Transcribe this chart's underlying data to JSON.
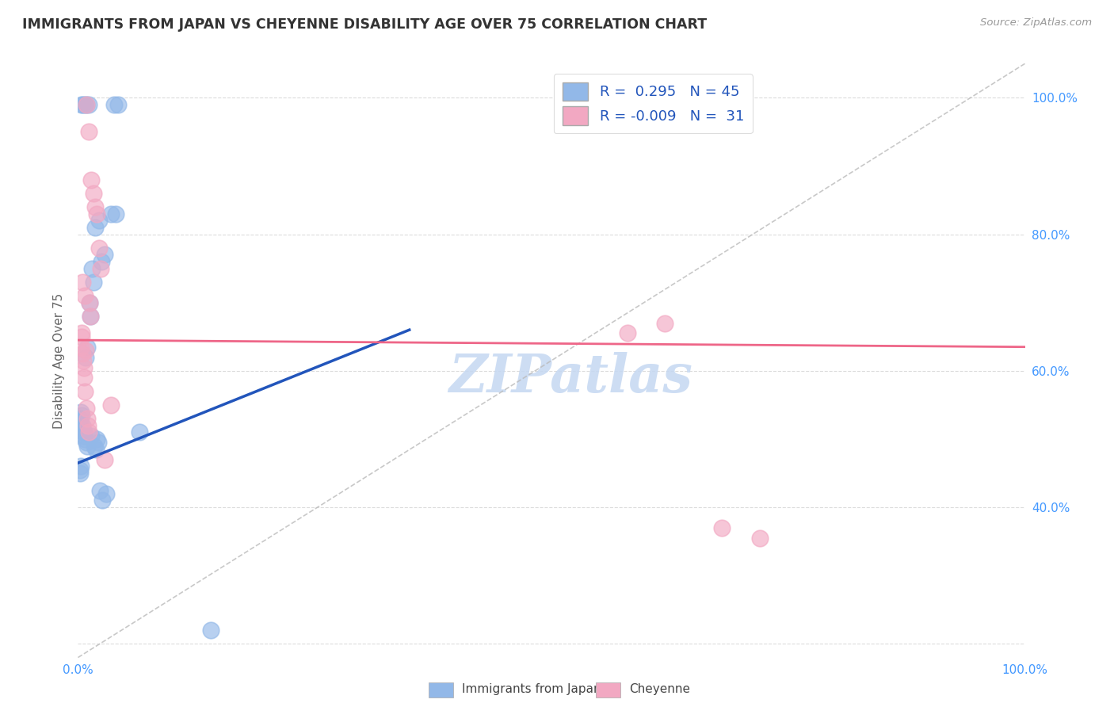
{
  "title": "IMMIGRANTS FROM JAPAN VS CHEYENNE DISABILITY AGE OVER 75 CORRELATION CHART",
  "source": "Source: ZipAtlas.com",
  "ylabel": "Disability Age Over 75",
  "legend_label1": "Immigrants from Japan",
  "legend_label2": "Cheyenne",
  "r1": "0.295",
  "n1": "45",
  "r2": "-0.009",
  "n2": "31",
  "blue_scatter_x": [
    0.5,
    0.7,
    0.9,
    1.1,
    0.4,
    3.8,
    4.2,
    3.5,
    4.0,
    1.8,
    2.2,
    2.5,
    2.8,
    1.5,
    1.6,
    1.2,
    1.3,
    1.0,
    0.8,
    0.3,
    0.35,
    0.25,
    0.2,
    0.15,
    0.1,
    0.45,
    0.55,
    0.6,
    0.65,
    0.75,
    0.85,
    0.95,
    1.4,
    1.7,
    1.9,
    2.0,
    2.1,
    6.5,
    0.3,
    0.25,
    0.2,
    3.0,
    2.3,
    2.6,
    14.0
  ],
  "blue_scatter_y": [
    99.0,
    99.0,
    99.0,
    99.0,
    99.0,
    99.0,
    99.0,
    83.0,
    83.0,
    81.0,
    82.0,
    76.0,
    77.0,
    75.0,
    73.0,
    70.0,
    68.0,
    63.5,
    62.0,
    54.0,
    53.5,
    53.0,
    52.5,
    52.0,
    51.5,
    52.0,
    51.0,
    50.5,
    51.0,
    50.0,
    49.5,
    49.0,
    50.5,
    49.0,
    48.5,
    50.0,
    49.5,
    51.0,
    46.0,
    45.5,
    45.0,
    42.0,
    42.5,
    41.0,
    22.0
  ],
  "pink_scatter_x": [
    0.9,
    1.1,
    1.4,
    1.6,
    1.8,
    2.0,
    2.2,
    2.4,
    0.5,
    0.7,
    1.2,
    1.3,
    0.4,
    0.35,
    0.3,
    0.45,
    0.55,
    0.6,
    0.65,
    0.75,
    3.5,
    0.85,
    0.8,
    58.0,
    68.0,
    72.0,
    62.0,
    0.95,
    1.05,
    1.15,
    2.8
  ],
  "pink_scatter_y": [
    99.0,
    95.0,
    88.0,
    86.0,
    84.0,
    83.0,
    78.0,
    75.0,
    73.0,
    71.0,
    70.0,
    68.0,
    65.5,
    65.0,
    63.5,
    62.5,
    61.5,
    60.5,
    59.0,
    57.0,
    55.0,
    54.5,
    63.0,
    65.5,
    37.0,
    35.5,
    67.0,
    53.0,
    52.0,
    51.0,
    47.0
  ],
  "blue_color": "#92B8E8",
  "pink_color": "#F2A8C2",
  "blue_line_color": "#2255BB",
  "pink_line_color": "#EE6688",
  "dashed_line_color": "#BBBBBB",
  "grid_color": "#CCCCCC",
  "background_color": "#FFFFFF",
  "title_color": "#333333",
  "axis_label_color": "#4499FF",
  "xlim": [
    0,
    100
  ],
  "ylim": [
    18,
    105
  ],
  "blue_trendline_x": [
    0,
    35
  ],
  "blue_trendline_y": [
    46.5,
    66.0
  ],
  "pink_trendline_x": [
    0,
    100
  ],
  "pink_trendline_y": [
    64.5,
    63.5
  ]
}
